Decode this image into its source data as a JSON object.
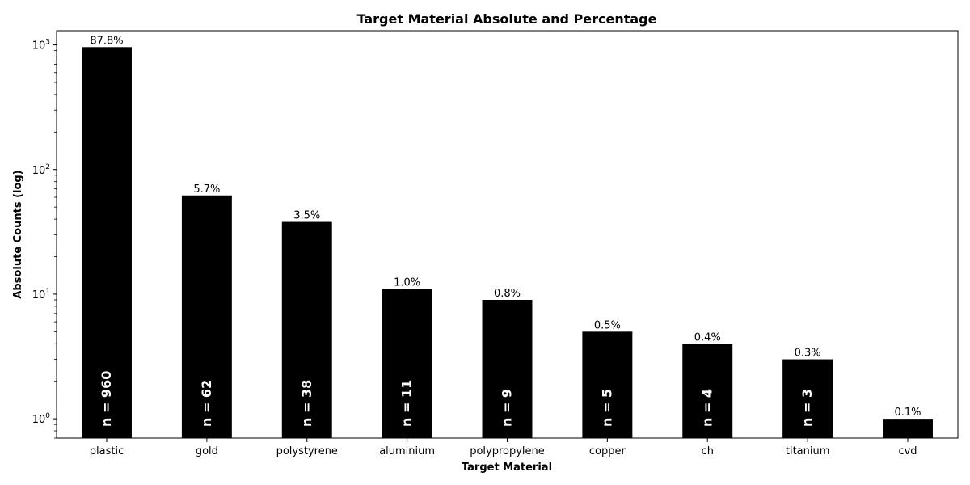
{
  "chart_data": {
    "type": "bar",
    "title": "Target Material Absolute and Percentage",
    "xlabel": "Target Material",
    "ylabel": "Absolute Counts (log)",
    "yscale": "log",
    "ylim": [
      0.7,
      1300
    ],
    "yticks": [
      {
        "value": 1,
        "base": "10",
        "exp": "0"
      },
      {
        "value": 10,
        "base": "10",
        "exp": "1"
      },
      {
        "value": 100,
        "base": "10",
        "exp": "2"
      },
      {
        "value": 1000,
        "base": "10",
        "exp": "3"
      }
    ],
    "grid": false,
    "bar_color": "#000000",
    "categories": [
      "plastic",
      "gold",
      "polystyrene",
      "aluminium",
      "polypropylene",
      "copper",
      "ch",
      "titanium",
      "cvd"
    ],
    "values": [
      960,
      62,
      38,
      11,
      9,
      5,
      4,
      3,
      1
    ],
    "percent_labels": [
      "87.8%",
      "5.7%",
      "3.5%",
      "1.0%",
      "0.8%",
      "0.5%",
      "0.4%",
      "0.3%",
      "0.1%"
    ],
    "count_labels": [
      "n = 960",
      "n = 62",
      "n = 38",
      "n = 11",
      "n = 9",
      "n = 5",
      "n = 4",
      "n = 3",
      ""
    ]
  }
}
